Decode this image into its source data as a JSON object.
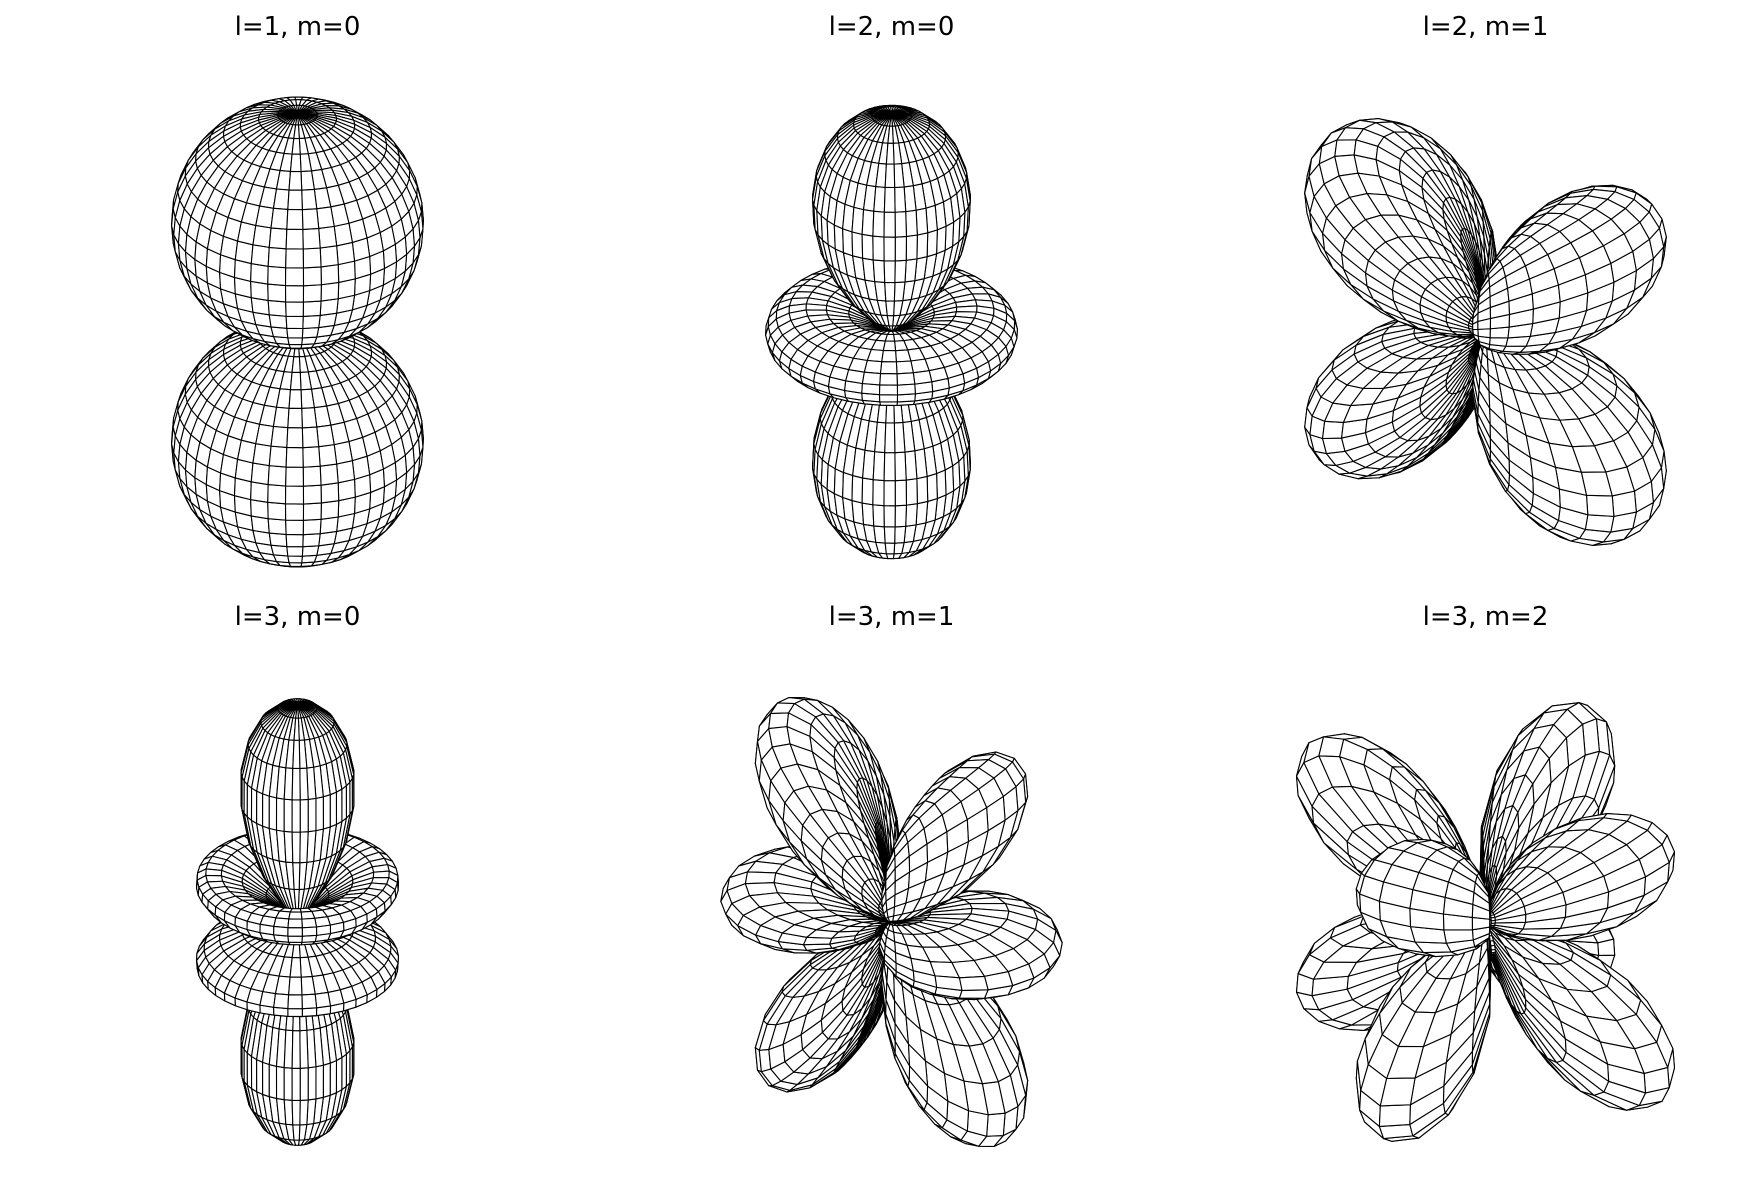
{
  "figure": {
    "background": "#ffffff",
    "line_color": "#000000",
    "fill_color": "#ffffff"
  },
  "panels": [
    {
      "title": "l=1, m=0",
      "l": 1,
      "m": 0
    },
    {
      "title": "l=2, m=0",
      "l": 2,
      "m": 0
    },
    {
      "title": "l=2, m=1",
      "l": 2,
      "m": 1
    },
    {
      "title": "l=3, m=0",
      "l": 3,
      "m": 0
    },
    {
      "title": "l=3, m=1",
      "l": 3,
      "m": 1
    },
    {
      "title": "l=3, m=2",
      "l": 3,
      "m": 2
    }
  ]
}
